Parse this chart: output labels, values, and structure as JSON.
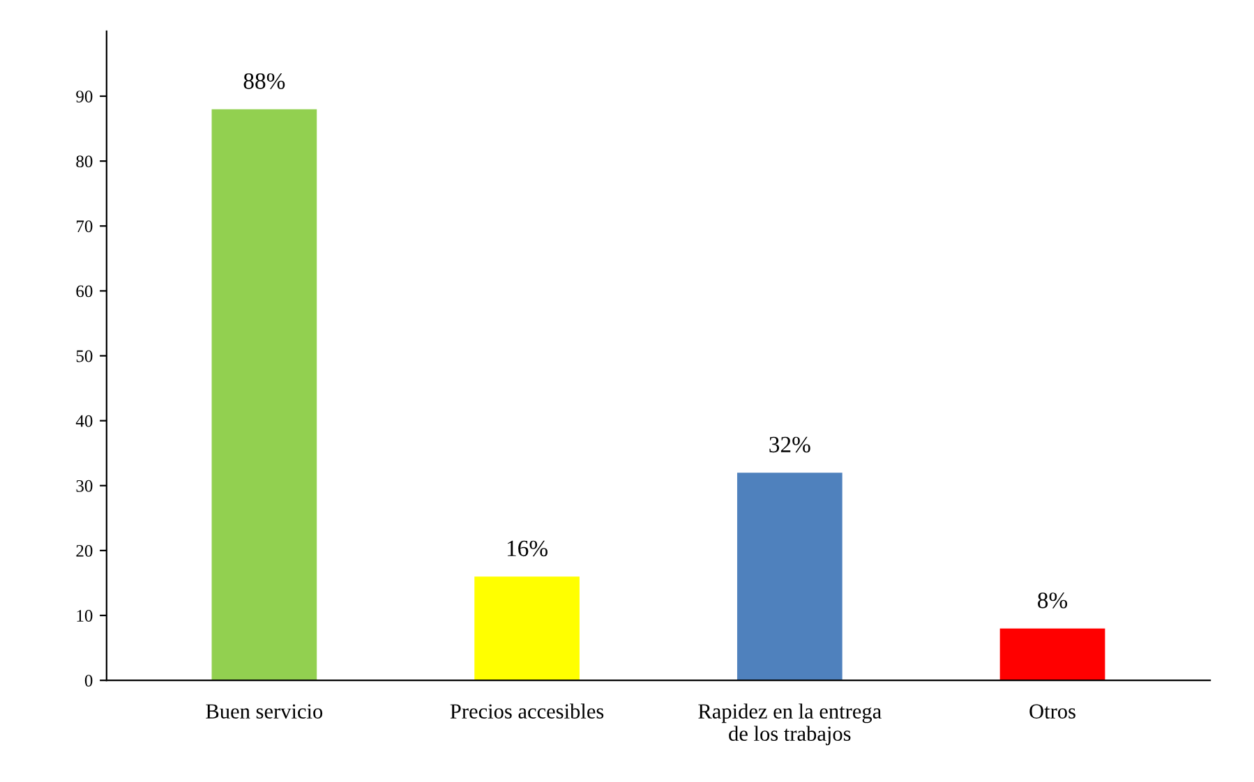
{
  "chart_data": {
    "type": "bar",
    "categories": [
      "Buen servicio",
      "Precios accesibles",
      "Rapidez en la entrega\nde los trabajos",
      "Otros"
    ],
    "values": [
      88,
      16,
      32,
      8
    ],
    "colors": [
      "#92d050",
      "#ffff00",
      "#4f81bd",
      "#ff0000"
    ],
    "value_labels": [
      "88%",
      "16%",
      "32%",
      "8%"
    ],
    "ylim": [
      0,
      100
    ],
    "yticks": [
      0,
      10,
      20,
      30,
      40,
      50,
      60,
      70,
      80,
      90
    ],
    "grid": false,
    "legend": false
  }
}
